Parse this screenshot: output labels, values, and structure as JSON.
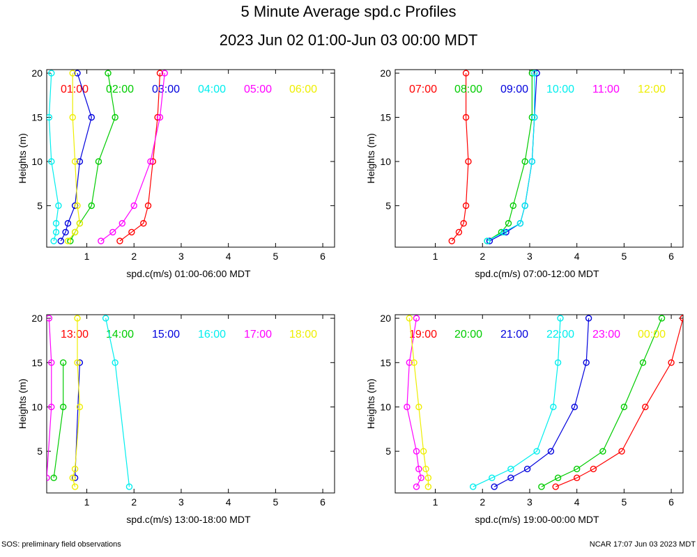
{
  "header": {
    "title": "5 Minute Average spd.c Profiles",
    "subtitle": "2023 Jun 02 01:00-Jun 03 00:00 MDT"
  },
  "footer": {
    "left": "SOS: preliminary field observations",
    "right": "NCAR 17:07 Jun 03 2023 MDT"
  },
  "colors": {
    "red": "#ff0000",
    "green": "#00cc00",
    "blue": "#0000dd",
    "cyan": "#00eeee",
    "magenta": "#ff00ff",
    "yellow": "#eeee00"
  },
  "chart_data": [
    {
      "type": "line",
      "title": "",
      "xlabel": "spd.c(m/s) 01:00-06:00 MDT",
      "ylabel": "Heights (m)",
      "xlim": [
        0.15,
        6.25
      ],
      "ylim": [
        0.3,
        20.4
      ],
      "xticks": [
        1,
        2,
        3,
        4,
        5,
        6
      ],
      "yticks": [
        5,
        10,
        15,
        20
      ],
      "series": [
        {
          "name": "01:00",
          "color": "red",
          "heights": [
            1,
            2,
            3,
            5,
            10,
            15,
            20
          ],
          "values": [
            1.7,
            1.95,
            2.2,
            2.3,
            2.4,
            2.5,
            2.55
          ]
        },
        {
          "name": "02:00",
          "color": "green",
          "heights": [
            1,
            2,
            3,
            5,
            10,
            15,
            20
          ],
          "values": [
            0.65,
            0.75,
            0.85,
            1.1,
            1.25,
            1.6,
            1.45
          ]
        },
        {
          "name": "03:00",
          "color": "blue",
          "heights": [
            1,
            2,
            3,
            5,
            10,
            15,
            20
          ],
          "values": [
            0.45,
            0.55,
            0.6,
            0.75,
            0.85,
            1.1,
            0.8
          ]
        },
        {
          "name": "04:00",
          "color": "cyan",
          "heights": [
            1,
            2,
            3,
            5,
            10,
            15,
            20
          ],
          "values": [
            0.3,
            0.35,
            0.35,
            0.4,
            0.25,
            0.2,
            0.25
          ]
        },
        {
          "name": "05:00",
          "color": "magenta",
          "heights": [
            1,
            2,
            3,
            5,
            10,
            15,
            20
          ],
          "values": [
            1.3,
            1.55,
            1.75,
            2.0,
            2.35,
            2.55,
            2.65
          ]
        },
        {
          "name": "06:00",
          "color": "yellow",
          "heights": [
            1,
            2,
            3,
            5,
            10,
            15,
            20
          ],
          "values": [
            0.6,
            0.75,
            0.85,
            0.8,
            0.75,
            0.7,
            0.7
          ]
        }
      ]
    },
    {
      "type": "line",
      "title": "",
      "xlabel": "spd.c(m/s) 07:00-12:00 MDT",
      "ylabel": "Heights (m)",
      "xlim": [
        0.15,
        6.25
      ],
      "ylim": [
        0.3,
        20.4
      ],
      "xticks": [
        1,
        2,
        3,
        4,
        5,
        6
      ],
      "yticks": [
        5,
        10,
        15,
        20
      ],
      "series": [
        {
          "name": "07:00",
          "color": "red",
          "heights": [
            1,
            2,
            3,
            5,
            10,
            15,
            20
          ],
          "values": [
            1.35,
            1.5,
            1.6,
            1.65,
            1.7,
            1.65,
            1.65
          ]
        },
        {
          "name": "08:00",
          "color": "green",
          "heights": [
            1,
            2,
            3,
            5,
            10,
            15,
            20
          ],
          "values": [
            2.1,
            2.4,
            2.55,
            2.65,
            2.9,
            3.05,
            3.05
          ]
        },
        {
          "name": "09:00",
          "color": "blue",
          "heights": [
            1,
            2,
            3,
            5,
            10,
            15,
            20
          ],
          "values": [
            2.15,
            2.5,
            2.8,
            2.9,
            3.05,
            3.1,
            3.15
          ]
        },
        {
          "name": "10:00",
          "color": "cyan",
          "heights": [
            1,
            2,
            3,
            5,
            10,
            15,
            20
          ],
          "values": [
            2.1,
            2.45,
            2.8,
            2.9,
            3.05,
            3.1,
            3.1
          ]
        },
        {
          "name": "11:00",
          "color": "magenta",
          "heights": [],
          "values": []
        },
        {
          "name": "12:00",
          "color": "yellow",
          "heights": [],
          "values": []
        }
      ]
    },
    {
      "type": "line",
      "title": "",
      "xlabel": "spd.c(m/s) 13:00-18:00 MDT",
      "ylabel": "Heights (m)",
      "xlim": [
        0.15,
        6.25
      ],
      "ylim": [
        0.3,
        20.4
      ],
      "xticks": [
        1,
        2,
        3,
        4,
        5,
        6
      ],
      "yticks": [
        5,
        10,
        15,
        20
      ],
      "series": [
        {
          "name": "13:00",
          "color": "red",
          "heights": [],
          "values": []
        },
        {
          "name": "14:00",
          "color": "green",
          "heights": [
            2,
            10,
            15
          ],
          "values": [
            0.3,
            0.5,
            0.5
          ]
        },
        {
          "name": "15:00",
          "color": "blue",
          "heights": [
            2,
            15
          ],
          "values": [
            0.75,
            0.85
          ]
        },
        {
          "name": "16:00",
          "color": "cyan",
          "heights": [
            1,
            15,
            20
          ],
          "values": [
            1.9,
            1.6,
            1.4
          ]
        },
        {
          "name": "17:00",
          "color": "magenta",
          "heights": [
            2,
            10,
            15,
            20
          ],
          "values": [
            0.15,
            0.25,
            0.25,
            0.2
          ]
        },
        {
          "name": "18:00",
          "color": "yellow",
          "heights": [
            1,
            2,
            3,
            10,
            15,
            20
          ],
          "values": [
            0.75,
            0.7,
            0.75,
            0.85,
            0.8,
            0.8
          ]
        }
      ]
    },
    {
      "type": "line",
      "title": "",
      "xlabel": "spd.c(m/s) 19:00-00:00 MDT",
      "ylabel": "Heights (m)",
      "xlim": [
        0.15,
        6.25
      ],
      "ylim": [
        0.3,
        20.4
      ],
      "xticks": [
        1,
        2,
        3,
        4,
        5,
        6
      ],
      "yticks": [
        5,
        10,
        15,
        20
      ],
      "series": [
        {
          "name": "19:00",
          "color": "red",
          "heights": [
            1,
            2,
            3,
            5,
            10,
            15,
            20
          ],
          "values": [
            3.55,
            4.0,
            4.35,
            4.95,
            5.45,
            6.0,
            6.25
          ]
        },
        {
          "name": "20:00",
          "color": "green",
          "heights": [
            1,
            2,
            3,
            5,
            10,
            15,
            20
          ],
          "values": [
            3.25,
            3.6,
            4.0,
            4.55,
            5.0,
            5.4,
            5.8
          ]
        },
        {
          "name": "21:00",
          "color": "blue",
          "heights": [
            1,
            2,
            3,
            5,
            10,
            15,
            20
          ],
          "values": [
            2.25,
            2.6,
            2.95,
            3.45,
            3.95,
            4.2,
            4.25
          ]
        },
        {
          "name": "22:00",
          "color": "cyan",
          "heights": [
            1,
            2,
            3,
            5,
            10,
            15,
            20
          ],
          "values": [
            1.8,
            2.2,
            2.6,
            3.15,
            3.5,
            3.6,
            3.65
          ]
        },
        {
          "name": "23:00",
          "color": "magenta",
          "heights": [
            1,
            2,
            3,
            5,
            10,
            15,
            20
          ],
          "values": [
            0.6,
            0.7,
            0.65,
            0.6,
            0.4,
            0.45,
            0.6
          ]
        },
        {
          "name": "00:00",
          "color": "yellow",
          "heights": [
            1,
            2,
            3,
            5,
            10,
            15,
            20
          ],
          "values": [
            0.85,
            0.85,
            0.8,
            0.75,
            0.65,
            0.55,
            0.45
          ]
        }
      ]
    }
  ]
}
